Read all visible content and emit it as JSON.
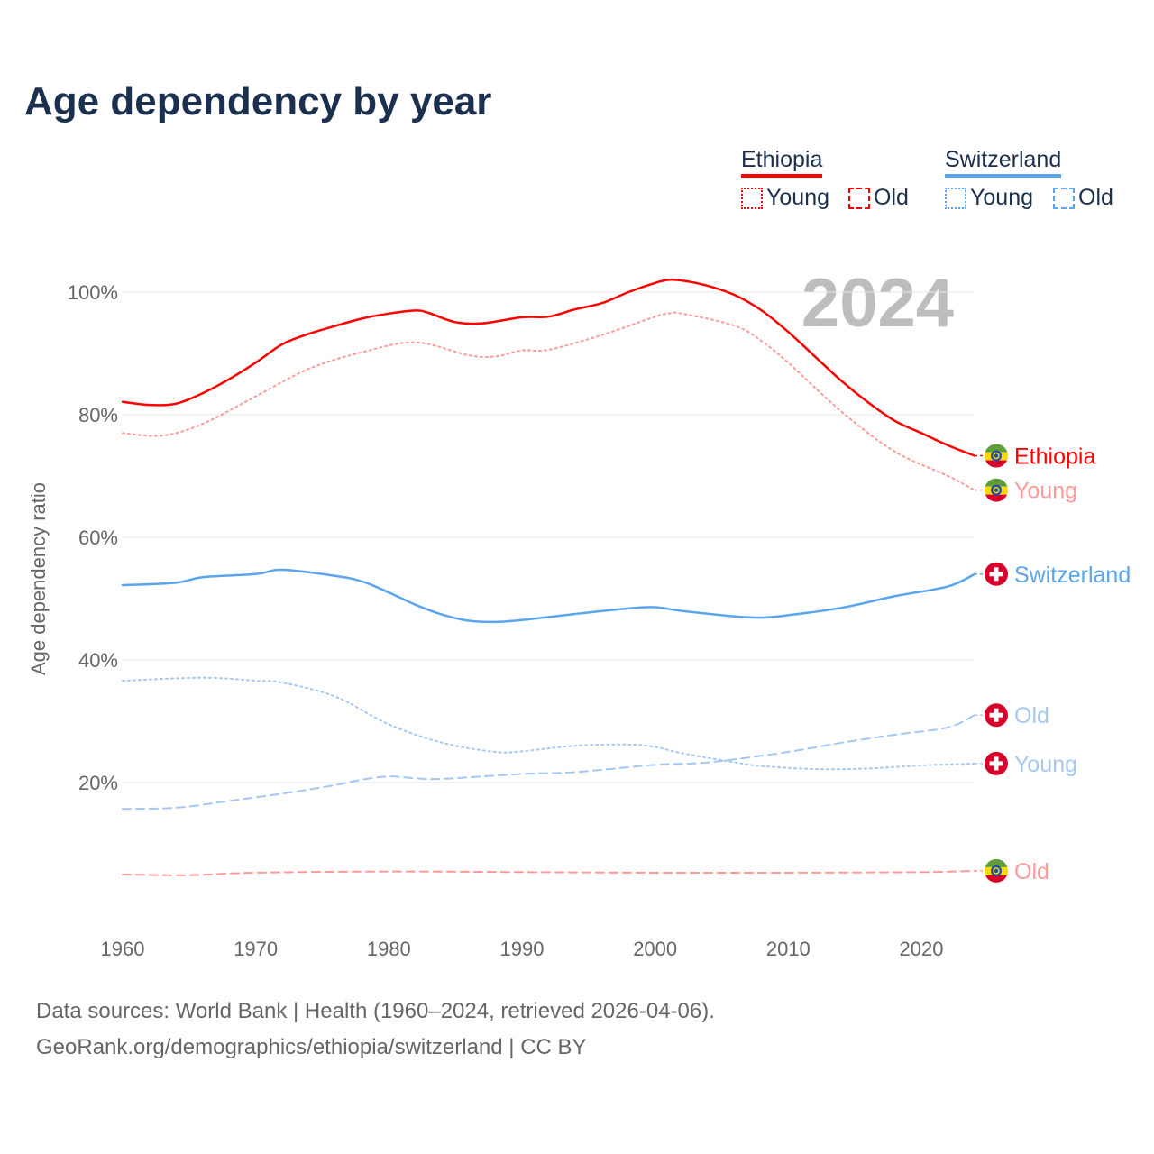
{
  "title": "Age dependency by year",
  "legend": {
    "groups": [
      {
        "name": "Ethiopia",
        "color": "#ff0000",
        "light": "#ff9a9a",
        "items": [
          "Young",
          "Old"
        ]
      },
      {
        "name": "Switzerland",
        "color": "#5aa5ec",
        "light": "#a6c8f0",
        "items": [
          "Young",
          "Old"
        ]
      }
    ]
  },
  "year_label": "2024",
  "footer": {
    "line1": "Data sources: World Bank | Health (1960–2024, retrieved 2026-04-06).",
    "line2": "GeoRank.org/demographics/ethiopia/switzerland | CC BY"
  },
  "chart_data": {
    "type": "line",
    "title": "Age dependency by year",
    "xlabel": "",
    "ylabel": "Age dependency ratio",
    "xlim": [
      1960,
      2024
    ],
    "ylim": [
      0,
      105
    ],
    "xticks": [
      1960,
      1970,
      1980,
      1990,
      2000,
      2010,
      2020
    ],
    "yticks": [
      {
        "v": 20,
        "label": "20%"
      },
      {
        "v": 40,
        "label": "40%"
      },
      {
        "v": 60,
        "label": "60%"
      },
      {
        "v": 80,
        "label": "80%"
      },
      {
        "v": 100,
        "label": "100%"
      }
    ],
    "grid": true,
    "series": [
      {
        "name": "Ethiopia",
        "end_label": "Ethiopia",
        "country": "ethiopia",
        "style": "solid",
        "color": "#ff0000",
        "label_color": "#ff0000",
        "points": [
          [
            1960,
            82.1
          ],
          [
            1962,
            81.6
          ],
          [
            1964,
            81.8
          ],
          [
            1966,
            83.5
          ],
          [
            1968,
            85.8
          ],
          [
            1970,
            88.5
          ],
          [
            1972,
            91.5
          ],
          [
            1974,
            93.2
          ],
          [
            1976,
            94.5
          ],
          [
            1978,
            95.7
          ],
          [
            1980,
            96.5
          ],
          [
            1982,
            97.0
          ],
          [
            1983,
            96.6
          ],
          [
            1985,
            95.1
          ],
          [
            1987,
            94.9
          ],
          [
            1990,
            95.9
          ],
          [
            1992,
            96.0
          ],
          [
            1994,
            97.2
          ],
          [
            1996,
            98.2
          ],
          [
            1998,
            100
          ],
          [
            2000,
            101.5
          ],
          [
            2001,
            102
          ],
          [
            2002,
            101.9
          ],
          [
            2004,
            101
          ],
          [
            2006,
            99.5
          ],
          [
            2008,
            97
          ],
          [
            2010,
            93.5
          ],
          [
            2012,
            89.5
          ],
          [
            2014,
            85.5
          ],
          [
            2016,
            82
          ],
          [
            2018,
            79
          ],
          [
            2020,
            77
          ],
          [
            2022,
            75
          ],
          [
            2024,
            73.3
          ]
        ]
      },
      {
        "name": "Ethiopia Young",
        "end_label": "Young",
        "country": "ethiopia",
        "style": "dotted",
        "color": "#ff9a9a",
        "label_color": "#ff9a9a",
        "points": [
          [
            1960,
            77
          ],
          [
            1963,
            76.6
          ],
          [
            1966,
            78.5
          ],
          [
            1970,
            83
          ],
          [
            1974,
            87.5
          ],
          [
            1978,
            90.2
          ],
          [
            1982,
            91.8
          ],
          [
            1986,
            89.7
          ],
          [
            1988,
            89.5
          ],
          [
            1990,
            90.5
          ],
          [
            1992,
            90.6
          ],
          [
            1996,
            93
          ],
          [
            2000,
            96
          ],
          [
            2001,
            96.5
          ],
          [
            2002,
            96.5
          ],
          [
            2006,
            94.5
          ],
          [
            2008,
            92
          ],
          [
            2010,
            88.5
          ],
          [
            2014,
            80.5
          ],
          [
            2018,
            74
          ],
          [
            2022,
            70
          ],
          [
            2024,
            67.7
          ]
        ]
      },
      {
        "name": "Switzerland",
        "end_label": "Switzerland",
        "country": "switzerland",
        "style": "solid",
        "color": "#5aa5ec",
        "label_color": "#5aa5ec",
        "points": [
          [
            1960,
            52.2
          ],
          [
            1964,
            52.6
          ],
          [
            1966,
            53.5
          ],
          [
            1970,
            54
          ],
          [
            1972,
            54.7
          ],
          [
            1976,
            53.7
          ],
          [
            1978,
            52.8
          ],
          [
            1980,
            51
          ],
          [
            1982,
            49
          ],
          [
            1984,
            47.4
          ],
          [
            1986,
            46.4
          ],
          [
            1988,
            46.2
          ],
          [
            1990,
            46.5
          ],
          [
            1994,
            47.5
          ],
          [
            1998,
            48.4
          ],
          [
            2000,
            48.6
          ],
          [
            2002,
            48
          ],
          [
            2006,
            47.1
          ],
          [
            2008,
            46.9
          ],
          [
            2010,
            47.3
          ],
          [
            2014,
            48.5
          ],
          [
            2018,
            50.4
          ],
          [
            2022,
            52
          ],
          [
            2024,
            54
          ]
        ]
      },
      {
        "name": "Switzerland Old",
        "end_label": "Old",
        "country": "switzerland",
        "style": "dashed",
        "color": "#a6c8f0",
        "label_color": "#a6c8f0",
        "points": [
          [
            1960,
            15.7
          ],
          [
            1964,
            15.9
          ],
          [
            1968,
            17
          ],
          [
            1972,
            18.2
          ],
          [
            1976,
            19.6
          ],
          [
            1978,
            20.5
          ],
          [
            1980,
            21
          ],
          [
            1982,
            20.7
          ],
          [
            1984,
            20.6
          ],
          [
            1990,
            21.4
          ],
          [
            1994,
            21.7
          ],
          [
            2000,
            22.9
          ],
          [
            2004,
            23.3
          ],
          [
            2010,
            25
          ],
          [
            2014,
            26.5
          ],
          [
            2018,
            27.8
          ],
          [
            2022,
            29
          ],
          [
            2024,
            31
          ]
        ]
      },
      {
        "name": "Switzerland Young",
        "end_label": "Young",
        "country": "switzerland",
        "style": "dotted",
        "color": "#a6c8f0",
        "label_color": "#a6c8f0",
        "points": [
          [
            1960,
            36.6
          ],
          [
            1966,
            37.1
          ],
          [
            1970,
            36.6
          ],
          [
            1972,
            36.3
          ],
          [
            1976,
            34
          ],
          [
            1980,
            29.5
          ],
          [
            1984,
            26.5
          ],
          [
            1988,
            25
          ],
          [
            1990,
            25.1
          ],
          [
            1994,
            26
          ],
          [
            1998,
            26.2
          ],
          [
            2000,
            25.8
          ],
          [
            2002,
            24.8
          ],
          [
            2006,
            23.3
          ],
          [
            2008,
            22.7
          ],
          [
            2012,
            22.2
          ],
          [
            2016,
            22.3
          ],
          [
            2020,
            22.8
          ],
          [
            2024,
            23.1
          ]
        ]
      },
      {
        "name": "Ethiopia Old",
        "end_label": "Old",
        "country": "ethiopia",
        "style": "dashed",
        "color": "#ff9a9a",
        "label_color": "#ff9a9a",
        "points": [
          [
            1960,
            5.0
          ],
          [
            1965,
            4.9
          ],
          [
            1970,
            5.3
          ],
          [
            1980,
            5.5
          ],
          [
            1990,
            5.4
          ],
          [
            2000,
            5.3
          ],
          [
            2010,
            5.3
          ],
          [
            2020,
            5.4
          ],
          [
            2024,
            5.6
          ]
        ]
      }
    ]
  }
}
